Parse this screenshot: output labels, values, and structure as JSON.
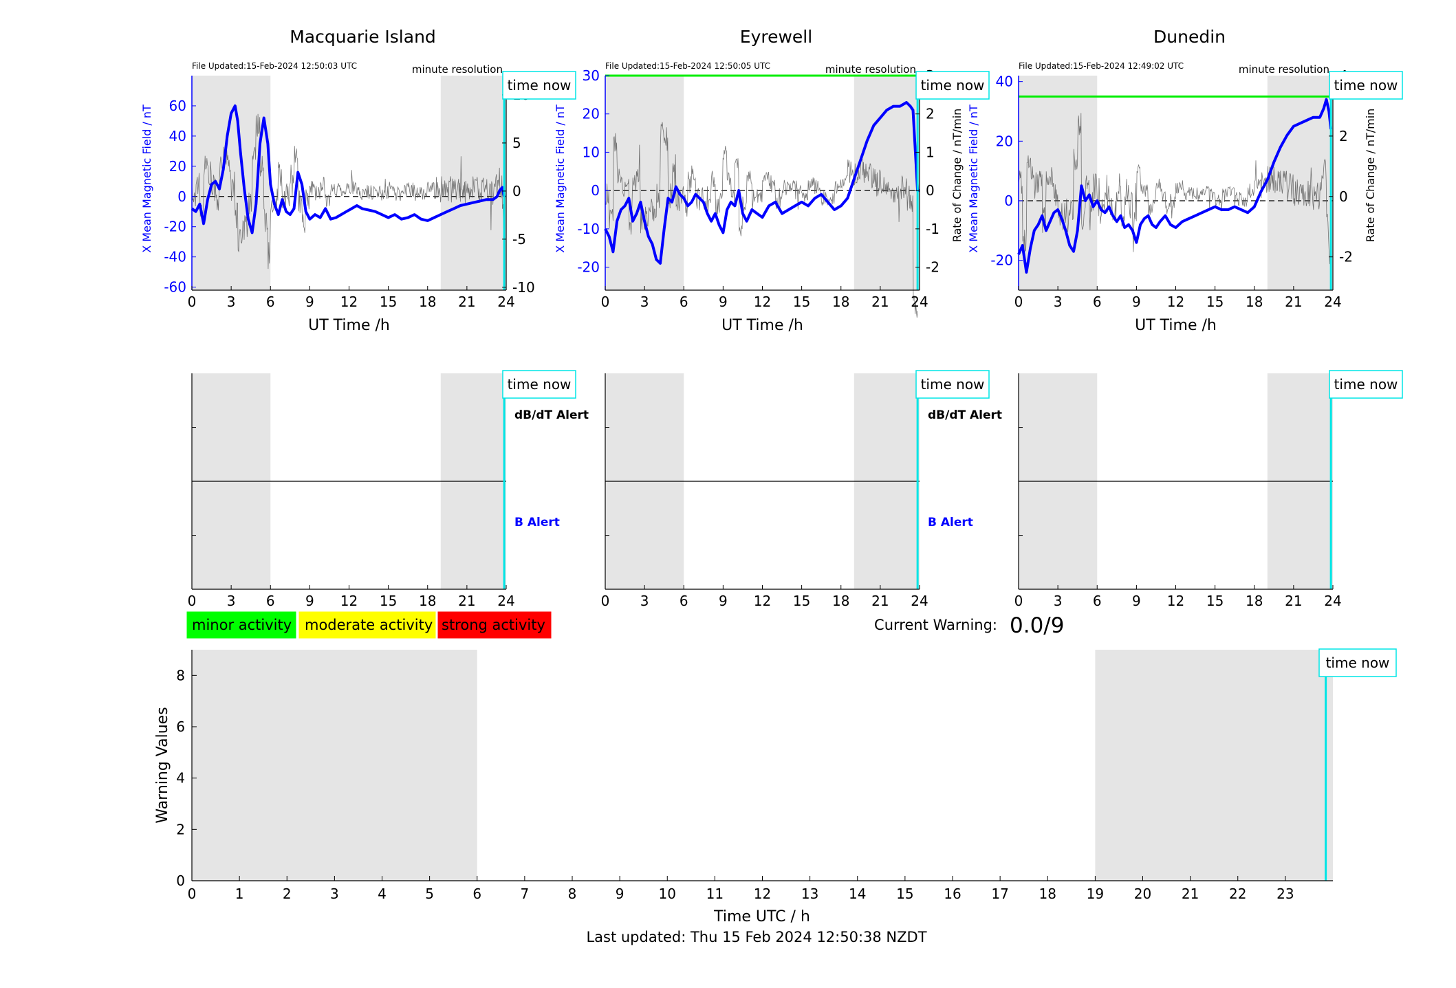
{
  "stations": [
    {
      "title": "Macquarie Island",
      "file_updated": "File Updated:15-Feb-2024 12:50:03 UTC",
      "resolution": "minute resolution",
      "ylabel_left": "X Mean Magnetic Field / nT",
      "ylabel_right": "",
      "xlabel": "UT Time /h",
      "time_now_label": "time now",
      "dbdt_alert": "dB/dT Alert",
      "b_alert": "B Alert",
      "chart_data": {
        "type": "line",
        "x_ticks": [
          0,
          3,
          6,
          9,
          12,
          15,
          18,
          21,
          24
        ],
        "ylim_left": [
          -62,
          80
        ],
        "yticks_left": [
          -60,
          -40,
          -20,
          0,
          20,
          40,
          60
        ],
        "ylim_right": [
          -10.3,
          12
        ],
        "yticks_right": [
          -10,
          -5,
          0,
          5,
          10
        ],
        "night_shading": [
          [
            0,
            6
          ],
          [
            19,
            24
          ]
        ],
        "time_now": 23.85,
        "green_threshold": null,
        "series": [
          {
            "x": [
              0,
              0.3,
              0.6,
              0.9,
              1.2,
              1.5,
              1.8,
              2.1,
              2.4,
              2.7,
              3.0,
              3.3,
              3.5,
              3.7,
              4.0,
              4.3,
              4.6,
              4.9,
              5.2,
              5.5,
              5.8,
              6.0,
              6.3,
              6.6,
              6.9,
              7.2,
              7.5,
              7.8,
              8.1,
              8.4,
              8.7,
              9.0,
              9.4,
              9.8,
              10.2,
              10.6,
              11.0,
              11.4,
              11.8,
              12.2,
              12.6,
              13.0,
              13.5,
              14.0,
              14.5,
              15.0,
              15.5,
              16.0,
              16.5,
              17.0,
              17.5,
              18.0,
              18.5,
              19.0,
              19.5,
              20.0,
              20.5,
              21.0,
              21.5,
              22.0,
              22.5,
              23.0,
              23.3,
              23.5,
              23.7,
              23.85
            ],
            "values": [
              -8,
              -10,
              -5,
              -18,
              -2,
              8,
              10,
              5,
              18,
              40,
              55,
              60,
              50,
              30,
              5,
              -15,
              -24,
              -5,
              35,
              52,
              35,
              8,
              -5,
              -12,
              -2,
              -10,
              -12,
              -8,
              16,
              8,
              -10,
              -15,
              -12,
              -14,
              -8,
              -15,
              -14,
              -12,
              -10,
              -8,
              -6,
              -8,
              -9,
              -10,
              -12,
              -14,
              -12,
              -15,
              -14,
              -12,
              -15,
              -16,
              -14,
              -12,
              -10,
              -8,
              -6,
              -5,
              -4,
              -3,
              -2,
              -2,
              0,
              4,
              6,
              0
            ]
          }
        ]
      }
    },
    {
      "title": "Eyrewell",
      "file_updated": "File Updated:15-Feb-2024 12:50:05 UTC",
      "resolution": "minute resolution",
      "ylabel_left": "X Mean Magnetic Field / nT",
      "ylabel_right": "Rate of Change / nT/min",
      "xlabel": "UT Time /h",
      "time_now_label": "time now",
      "dbdt_alert": "dB/dT Alert",
      "b_alert": "B Alert",
      "chart_data": {
        "type": "line",
        "x_ticks": [
          0,
          3,
          6,
          9,
          12,
          15,
          18,
          21,
          24
        ],
        "ylim_left": [
          -26,
          30
        ],
        "yticks_left": [
          -20,
          -10,
          0,
          10,
          20,
          30
        ],
        "ylim_right": [
          -2.6,
          3
        ],
        "yticks_right": [
          -2,
          -1,
          0,
          1,
          2,
          3
        ],
        "night_shading": [
          [
            0,
            6
          ],
          [
            19,
            24
          ]
        ],
        "time_now": 23.85,
        "green_threshold": 30,
        "series": [
          {
            "x": [
              0,
              0.3,
              0.6,
              0.9,
              1.2,
              1.5,
              1.8,
              2.1,
              2.4,
              2.7,
              3.0,
              3.3,
              3.6,
              3.9,
              4.2,
              4.5,
              4.8,
              5.1,
              5.4,
              5.7,
              6.0,
              6.3,
              6.6,
              6.9,
              7.2,
              7.5,
              7.8,
              8.1,
              8.4,
              8.7,
              9.0,
              9.3,
              9.6,
              9.9,
              10.2,
              10.5,
              10.8,
              11.2,
              11.6,
              12.0,
              12.5,
              13.0,
              13.5,
              14.0,
              14.5,
              15.0,
              15.5,
              16.0,
              16.5,
              17.0,
              17.5,
              18.0,
              18.5,
              19.0,
              19.5,
              20.0,
              20.5,
              21.0,
              21.5,
              22.0,
              22.5,
              23.0,
              23.3,
              23.5,
              23.85
            ],
            "values": [
              -10,
              -12,
              -16,
              -8,
              -5,
              -4,
              -2,
              -8,
              -6,
              -3,
              -8,
              -12,
              -14,
              -18,
              -19,
              -10,
              -2,
              -3,
              1,
              -1,
              -2,
              -4,
              -3,
              -1,
              -2,
              -3,
              -6,
              -8,
              -6,
              -9,
              -11,
              -5,
              -3,
              -4,
              0,
              -6,
              -8,
              -5,
              -6,
              -7,
              -4,
              -3,
              -6,
              -5,
              -4,
              -3,
              -4,
              -2,
              -1,
              -3,
              -5,
              -4,
              -2,
              3,
              8,
              13,
              17,
              19,
              21,
              22,
              22,
              23,
              22,
              21,
              0
            ]
          }
        ]
      }
    },
    {
      "title": "Dunedin",
      "file_updated": "File Updated:15-Feb-2024 12:49:02 UTC",
      "resolution": "minute resolution",
      "ylabel_left": "X Mean Magnetic Field / nT",
      "ylabel_right": "Rate of Change / nT/min",
      "xlabel": "UT Time /h",
      "time_now_label": "time now",
      "dbdt_alert": "",
      "b_alert": "",
      "chart_data": {
        "type": "line",
        "x_ticks": [
          0,
          3,
          6,
          9,
          12,
          15,
          18,
          21,
          24
        ],
        "ylim_left": [
          -30,
          42
        ],
        "yticks_left": [
          -20,
          0,
          20,
          40
        ],
        "ylim_right": [
          -3.1,
          4
        ],
        "yticks_right": [
          -2,
          0,
          2,
          4
        ],
        "night_shading": [
          [
            0,
            6
          ],
          [
            19,
            24
          ]
        ],
        "time_now": 23.85,
        "green_threshold": 35,
        "series": [
          {
            "x": [
              0,
              0.3,
              0.6,
              0.9,
              1.2,
              1.5,
              1.8,
              2.1,
              2.4,
              2.7,
              3.0,
              3.3,
              3.6,
              3.9,
              4.2,
              4.5,
              4.8,
              5.1,
              5.4,
              5.7,
              6.0,
              6.3,
              6.6,
              6.9,
              7.2,
              7.5,
              7.8,
              8.1,
              8.4,
              8.7,
              9.0,
              9.3,
              9.6,
              9.9,
              10.2,
              10.5,
              10.8,
              11.2,
              11.6,
              12.0,
              12.5,
              13.0,
              13.5,
              14.0,
              14.5,
              15.0,
              15.5,
              16.0,
              16.5,
              17.0,
              17.5,
              18.0,
              18.5,
              19.0,
              19.5,
              20.0,
              20.5,
              21.0,
              21.5,
              22.0,
              22.5,
              23.0,
              23.3,
              23.5,
              23.7,
              23.85
            ],
            "values": [
              -18,
              -15,
              -24,
              -16,
              -10,
              -8,
              -5,
              -10,
              -7,
              -4,
              -3,
              -6,
              -10,
              -15,
              -17,
              -10,
              5,
              0,
              2,
              -2,
              0,
              -3,
              -4,
              -2,
              -5,
              -7,
              -5,
              -9,
              -8,
              -10,
              -14,
              -8,
              -6,
              -5,
              -8,
              -9,
              -7,
              -5,
              -8,
              -9,
              -7,
              -6,
              -5,
              -4,
              -3,
              -2,
              -3,
              -3,
              -2,
              -3,
              -4,
              -2,
              3,
              7,
              13,
              18,
              22,
              25,
              26,
              27,
              28,
              28,
              31,
              34,
              30,
              24
            ]
          }
        ]
      }
    }
  ],
  "bottom": {
    "legend": [
      {
        "label": "minor activity",
        "color": "#00ff00"
      },
      {
        "label": "moderate activity",
        "color": "#ffff00"
      },
      {
        "label": "strong activity",
        "color": "#ff0000"
      }
    ],
    "current_warning_label": "Current Warning:",
    "current_warning_value": "0.0/9",
    "ylabel": "Warning Values",
    "xlabel": "Time UTC / h",
    "time_now_label": "time now",
    "last_updated": "Last updated: Thu 15 Feb 2024 12:50:38 NZDT",
    "chart_data": {
      "type": "bar",
      "x_ticks": [
        0,
        1,
        2,
        3,
        4,
        5,
        6,
        7,
        8,
        9,
        10,
        11,
        12,
        13,
        14,
        15,
        16,
        17,
        18,
        19,
        20,
        21,
        22,
        23
      ],
      "xlim": [
        0,
        24
      ],
      "ylim": [
        0,
        9
      ],
      "yticks": [
        0,
        2,
        4,
        6,
        8
      ],
      "night_shading": [
        [
          0,
          6
        ],
        [
          19,
          24
        ]
      ],
      "time_now": 23.85,
      "values": []
    }
  },
  "colors": {
    "field_line": "#0000ff",
    "rate_line": "#555555",
    "threshold": "#00ee00",
    "time_now": "#00e5e5",
    "night": "#e5e5e5"
  }
}
